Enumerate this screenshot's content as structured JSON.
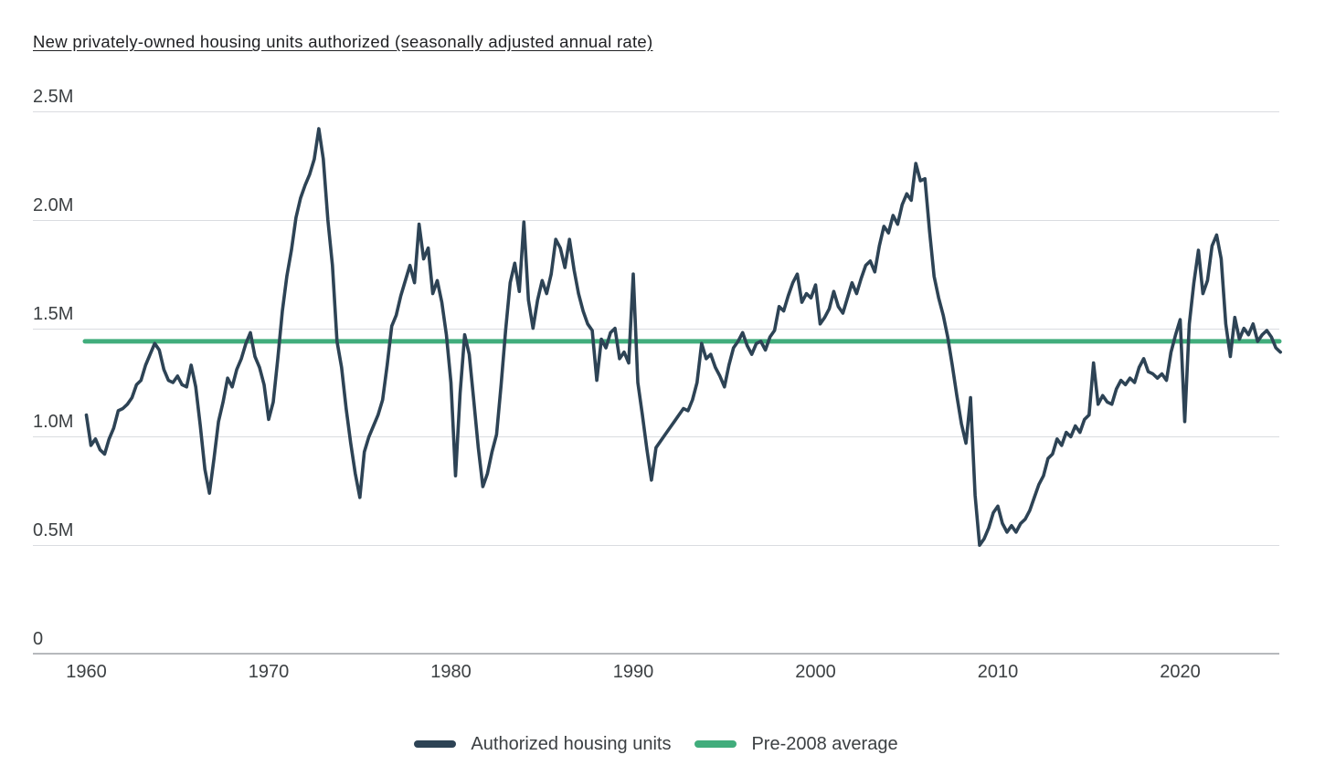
{
  "chart_title": "New privately-owned housing units authorized (seasonally adjusted annual rate)",
  "colors": {
    "series_line": "#2d4355",
    "average_line": "#41ad7c",
    "gridline": "#dadce0",
    "zero_axis": "#b6b9bc",
    "title_text": "#202124",
    "tick_text": "#3c4043",
    "background": "#ffffff"
  },
  "chart_data": {
    "type": "line",
    "title": "New privately-owned housing units authorized (seasonally adjusted annual rate)",
    "grid": "horizontal",
    "legend_position": "bottom",
    "y_axis": {
      "range": [
        0,
        2.5
      ],
      "tick_interval": 0.5,
      "unit": "millions of housing units",
      "ticks": [
        {
          "label": "2.5M",
          "value": 2.5
        },
        {
          "label": "2.0M",
          "value": 2.0
        },
        {
          "label": "1.5M",
          "value": 1.5
        },
        {
          "label": "1.0M",
          "value": 1.0
        },
        {
          "label": "0.5M",
          "value": 0.5
        },
        {
          "label": "0",
          "value": 0
        }
      ]
    },
    "x_axis": {
      "range_years": [
        1960,
        2025.5
      ],
      "ticks": [
        {
          "label": "1960",
          "value": 1960
        },
        {
          "label": "1970",
          "value": 1970
        },
        {
          "label": "1980",
          "value": 1980
        },
        {
          "label": "1990",
          "value": 1990
        },
        {
          "label": "2000",
          "value": 2000
        },
        {
          "label": "2010",
          "value": 2010
        },
        {
          "label": "2020",
          "value": 2020
        }
      ]
    },
    "series": [
      {
        "name": "Authorized housing units",
        "color": "#2d4355",
        "type": "line",
        "unit": "millions of units, SAAR",
        "start_year": 1960,
        "points_per_year": 4,
        "values": [
          1.1,
          0.96,
          0.99,
          0.94,
          0.92,
          0.99,
          1.04,
          1.12,
          1.13,
          1.15,
          1.18,
          1.24,
          1.26,
          1.33,
          1.38,
          1.43,
          1.4,
          1.31,
          1.26,
          1.25,
          1.28,
          1.24,
          1.23,
          1.33,
          1.23,
          1.05,
          0.85,
          0.74,
          0.9,
          1.07,
          1.16,
          1.27,
          1.23,
          1.31,
          1.36,
          1.43,
          1.48,
          1.37,
          1.32,
          1.24,
          1.08,
          1.16,
          1.36,
          1.58,
          1.74,
          1.86,
          2.01,
          2.1,
          2.16,
          2.21,
          2.28,
          2.42,
          2.28,
          2.0,
          1.79,
          1.44,
          1.32,
          1.13,
          0.97,
          0.83,
          0.72,
          0.93,
          1.0,
          1.05,
          1.1,
          1.17,
          1.33,
          1.51,
          1.56,
          1.65,
          1.72,
          1.79,
          1.71,
          1.98,
          1.82,
          1.87,
          1.66,
          1.72,
          1.62,
          1.47,
          1.25,
          0.82,
          1.2,
          1.47,
          1.38,
          1.17,
          0.95,
          0.77,
          0.83,
          0.93,
          1.01,
          1.24,
          1.49,
          1.71,
          1.8,
          1.67,
          1.99,
          1.63,
          1.5,
          1.63,
          1.72,
          1.66,
          1.75,
          1.91,
          1.87,
          1.78,
          1.91,
          1.77,
          1.66,
          1.58,
          1.52,
          1.49,
          1.26,
          1.45,
          1.41,
          1.48,
          1.5,
          1.36,
          1.39,
          1.34,
          1.75,
          1.25,
          1.1,
          0.94,
          0.8,
          0.95,
          0.98,
          1.01,
          1.04,
          1.07,
          1.1,
          1.13,
          1.12,
          1.17,
          1.25,
          1.43,
          1.36,
          1.38,
          1.32,
          1.28,
          1.23,
          1.33,
          1.41,
          1.44,
          1.48,
          1.42,
          1.38,
          1.43,
          1.44,
          1.4,
          1.46,
          1.49,
          1.6,
          1.58,
          1.65,
          1.71,
          1.75,
          1.62,
          1.66,
          1.64,
          1.7,
          1.52,
          1.55,
          1.59,
          1.67,
          1.6,
          1.57,
          1.64,
          1.71,
          1.66,
          1.73,
          1.79,
          1.81,
          1.76,
          1.88,
          1.97,
          1.94,
          2.02,
          1.98,
          2.07,
          2.12,
          2.09,
          2.26,
          2.18,
          2.19,
          1.95,
          1.74,
          1.64,
          1.56,
          1.46,
          1.33,
          1.19,
          1.06,
          0.97,
          1.18,
          0.73,
          0.5,
          0.53,
          0.58,
          0.65,
          0.68,
          0.6,
          0.56,
          0.59,
          0.56,
          0.6,
          0.62,
          0.66,
          0.72,
          0.78,
          0.82,
          0.9,
          0.92,
          0.99,
          0.96,
          1.02,
          1.0,
          1.05,
          1.02,
          1.08,
          1.1,
          1.34,
          1.15,
          1.19,
          1.16,
          1.15,
          1.22,
          1.26,
          1.24,
          1.27,
          1.25,
          1.32,
          1.36,
          1.3,
          1.29,
          1.27,
          1.29,
          1.26,
          1.39,
          1.47,
          1.54,
          1.07,
          1.52,
          1.71,
          1.86,
          1.66,
          1.72,
          1.88,
          1.93,
          1.82,
          1.52,
          1.37,
          1.55,
          1.45,
          1.5,
          1.47,
          1.52,
          1.44,
          1.47,
          1.49,
          1.46,
          1.41,
          1.39
        ]
      },
      {
        "name": "Pre-2008 average",
        "color": "#41ad7c",
        "type": "reference_line",
        "value": 1.44,
        "unit": "millions of units, SAAR"
      }
    ]
  }
}
